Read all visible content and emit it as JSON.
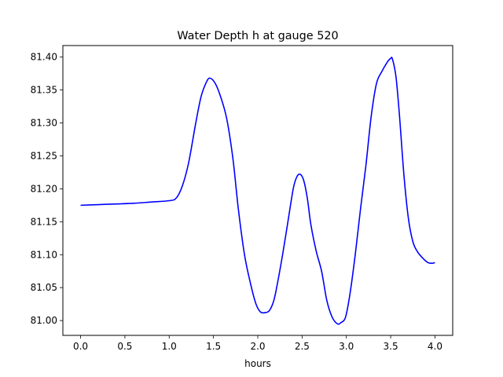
{
  "chart_data": {
    "type": "line",
    "title": "Water Depth h at gauge 520",
    "xlabel": "hours",
    "ylabel": "",
    "xlim": [
      -0.2,
      4.2
    ],
    "ylim": [
      80.9775,
      81.4175
    ],
    "xticks": [
      0.0,
      0.5,
      1.0,
      1.5,
      2.0,
      2.5,
      3.0,
      3.5,
      4.0
    ],
    "xtick_labels": [
      "0.0",
      "0.5",
      "1.0",
      "1.5",
      "2.0",
      "2.5",
      "3.0",
      "3.5",
      "4.0"
    ],
    "yticks": [
      81.0,
      81.05,
      81.1,
      81.15,
      81.2,
      81.25,
      81.3,
      81.35,
      81.4
    ],
    "ytick_labels": [
      "81.00",
      "81.05",
      "81.10",
      "81.15",
      "81.20",
      "81.25",
      "81.30",
      "81.35",
      "81.40"
    ],
    "grid": false,
    "series": [
      {
        "color": "#0000ff",
        "x": [
          0.0,
          0.2,
          0.4,
          0.6,
          0.8,
          1.0,
          1.08,
          1.15,
          1.22,
          1.3,
          1.36,
          1.42,
          1.46,
          1.52,
          1.58,
          1.65,
          1.72,
          1.78,
          1.85,
          1.92,
          1.98,
          2.03,
          2.08,
          2.13,
          2.18,
          2.22,
          2.28,
          2.34,
          2.4,
          2.44,
          2.48,
          2.52,
          2.56,
          2.6,
          2.66,
          2.72,
          2.78,
          2.84,
          2.9,
          2.94,
          2.99,
          3.04,
          3.1,
          3.16,
          3.22,
          3.28,
          3.34,
          3.4,
          3.46,
          3.5,
          3.52,
          3.56,
          3.6,
          3.65,
          3.7,
          3.75,
          3.8,
          3.86,
          3.92,
          3.97,
          4.0
        ],
        "values": [
          81.175,
          81.176,
          81.177,
          81.178,
          81.18,
          81.182,
          81.186,
          81.205,
          81.24,
          81.3,
          81.34,
          81.362,
          81.368,
          81.36,
          81.34,
          81.306,
          81.245,
          81.17,
          81.1,
          81.055,
          81.025,
          81.013,
          81.012,
          81.015,
          81.03,
          81.055,
          81.1,
          81.15,
          81.2,
          81.218,
          81.222,
          81.212,
          81.185,
          81.145,
          81.105,
          81.075,
          81.03,
          81.005,
          80.995,
          80.997,
          81.005,
          81.04,
          81.1,
          81.17,
          81.235,
          81.31,
          81.36,
          81.378,
          81.392,
          81.398,
          81.397,
          81.37,
          81.31,
          81.22,
          81.155,
          81.12,
          81.105,
          81.095,
          81.088,
          81.087,
          81.088
        ]
      }
    ]
  }
}
